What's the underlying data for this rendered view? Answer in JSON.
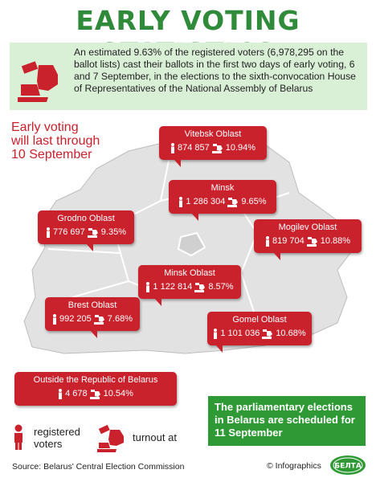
{
  "title": "EARLY VOTING STATISTICS",
  "intro": {
    "text": "An estimated 9.63% of the registered voters (6,978,295 on the ballot lists) cast their ballots in the first two days of early voting, 6 and 7 September, in the elections to the sixth-convocation House of Representatives of the National Assembly of Belarus",
    "icon": "ballot-hand-icon"
  },
  "early_voting_note": {
    "line1": "Early voting",
    "line2": "will last through",
    "line3": "10 September"
  },
  "regions": [
    {
      "name": "Vitebsk Oblast",
      "voters": "874 857",
      "turnout": "10.94%"
    },
    {
      "name": "Minsk",
      "voters": "1 286 304",
      "turnout": "9.65%"
    },
    {
      "name": "Grodno Oblast",
      "voters": "776 697",
      "turnout": "9.35%"
    },
    {
      "name": "Mogilev Oblast",
      "voters": "819 704",
      "turnout": "10.88%"
    },
    {
      "name": "Minsk Oblast",
      "voters": "1 122 814",
      "turnout": "8.57%"
    },
    {
      "name": "Brest Oblast",
      "voters": "992 205",
      "turnout": "7.68%"
    },
    {
      "name": "Gomel Oblast",
      "voters": "1 101 036",
      "turnout": "10.68%"
    },
    {
      "name": "Outside the Republic of Belarus",
      "voters": "4 678",
      "turnout": "10.54%"
    }
  ],
  "election_note": "The parliamentary elections in Belarus are scheduled for 11 September",
  "legend": {
    "registered_line1": "registered",
    "registered_line2": "voters",
    "turnout": "turnout at"
  },
  "source": "Source: Belarus' Central Election Commission",
  "credit": "© Infographics",
  "logo_text": "БЕЛТА",
  "colors": {
    "title_green": "#2f8a3a",
    "callout_red": "#c9222d",
    "intro_bg": "#d9f0d6",
    "map_fill": "#e2e2e2",
    "note_green": "#2f9a35"
  }
}
